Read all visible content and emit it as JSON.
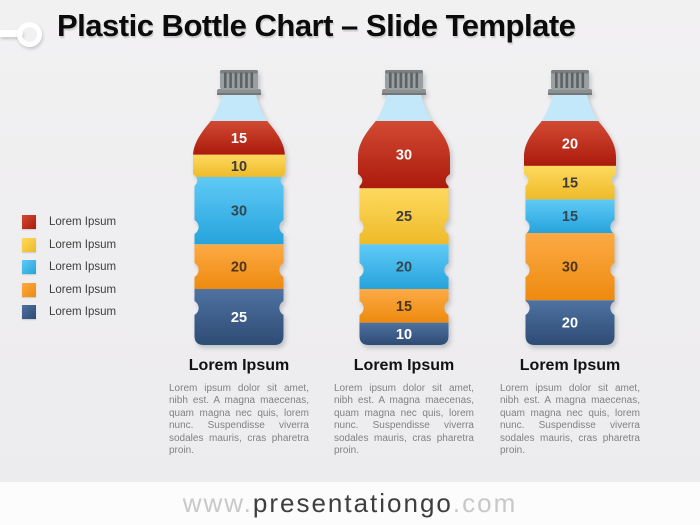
{
  "slide_title": "Plastic Bottle Chart – Slide Template",
  "footer": {
    "prefix": "www.",
    "brand": "presentationgo",
    "suffix": ".com"
  },
  "chart_data": {
    "type": "bar",
    "stacked": true,
    "orientation": "vertical",
    "unit_total": 100,
    "empty_fill": "#c3e8fa",
    "legend_position": "left",
    "series": [
      {
        "name": "segment-red",
        "legend_label": "Lorem Ipsum",
        "color": "#c9301f",
        "gradient_top": "#d24a33",
        "gradient_bottom": "#ab1a0b",
        "value_text_color": "#ffffff"
      },
      {
        "name": "segment-yellow",
        "legend_label": "Lorem Ipsum",
        "color": "#f7cf45",
        "gradient_top": "#fdd95e",
        "gradient_bottom": "#eeba29",
        "value_text_color": "#3c3c3c"
      },
      {
        "name": "segment-cyan",
        "legend_label": "Lorem Ipsum",
        "color": "#45c0ef",
        "gradient_top": "#5fcaf6",
        "gradient_bottom": "#26a3dc",
        "value_text_color": "#32474f"
      },
      {
        "name": "segment-orange",
        "legend_label": "Lorem Ipsum",
        "color": "#f8992e",
        "gradient_top": "#fcaa45",
        "gradient_bottom": "#ed8a0e",
        "value_text_color": "#4c3518"
      },
      {
        "name": "segment-navy",
        "legend_label": "Lorem Ipsum",
        "color": "#40618f",
        "gradient_top": "#4f72a1",
        "gradient_bottom": "#2d4b74",
        "value_text_color": "#ffffff"
      }
    ],
    "bottles": [
      {
        "title": "Lorem Ipsum",
        "description": "Lorem ipsum dolor sit amet, nibh est. A magna maecenas, quam magna nec quis, lorem nunc. Suspendisse viverra sodales mauris, cras pharetra proin.",
        "values": [
          15,
          10,
          30,
          20,
          25
        ]
      },
      {
        "title": "Lorem Ipsum",
        "description": "Lorem ipsum dolor sit amet, nibh est. A magna maecenas, quam magna nec quis, lorem nunc. Suspendisse viverra sodales mauris, cras pharetra proin.",
        "values": [
          30,
          25,
          20,
          15,
          10
        ]
      },
      {
        "title": "Lorem Ipsum",
        "description": "Lorem ipsum dolor sit amet, nibh est. A magna maecenas, quam magna nec quis, lorem nunc. Suspendisse viverra sodales mauris, cras pharetra proin.",
        "values": [
          20,
          15,
          15,
          30,
          20
        ]
      }
    ]
  }
}
